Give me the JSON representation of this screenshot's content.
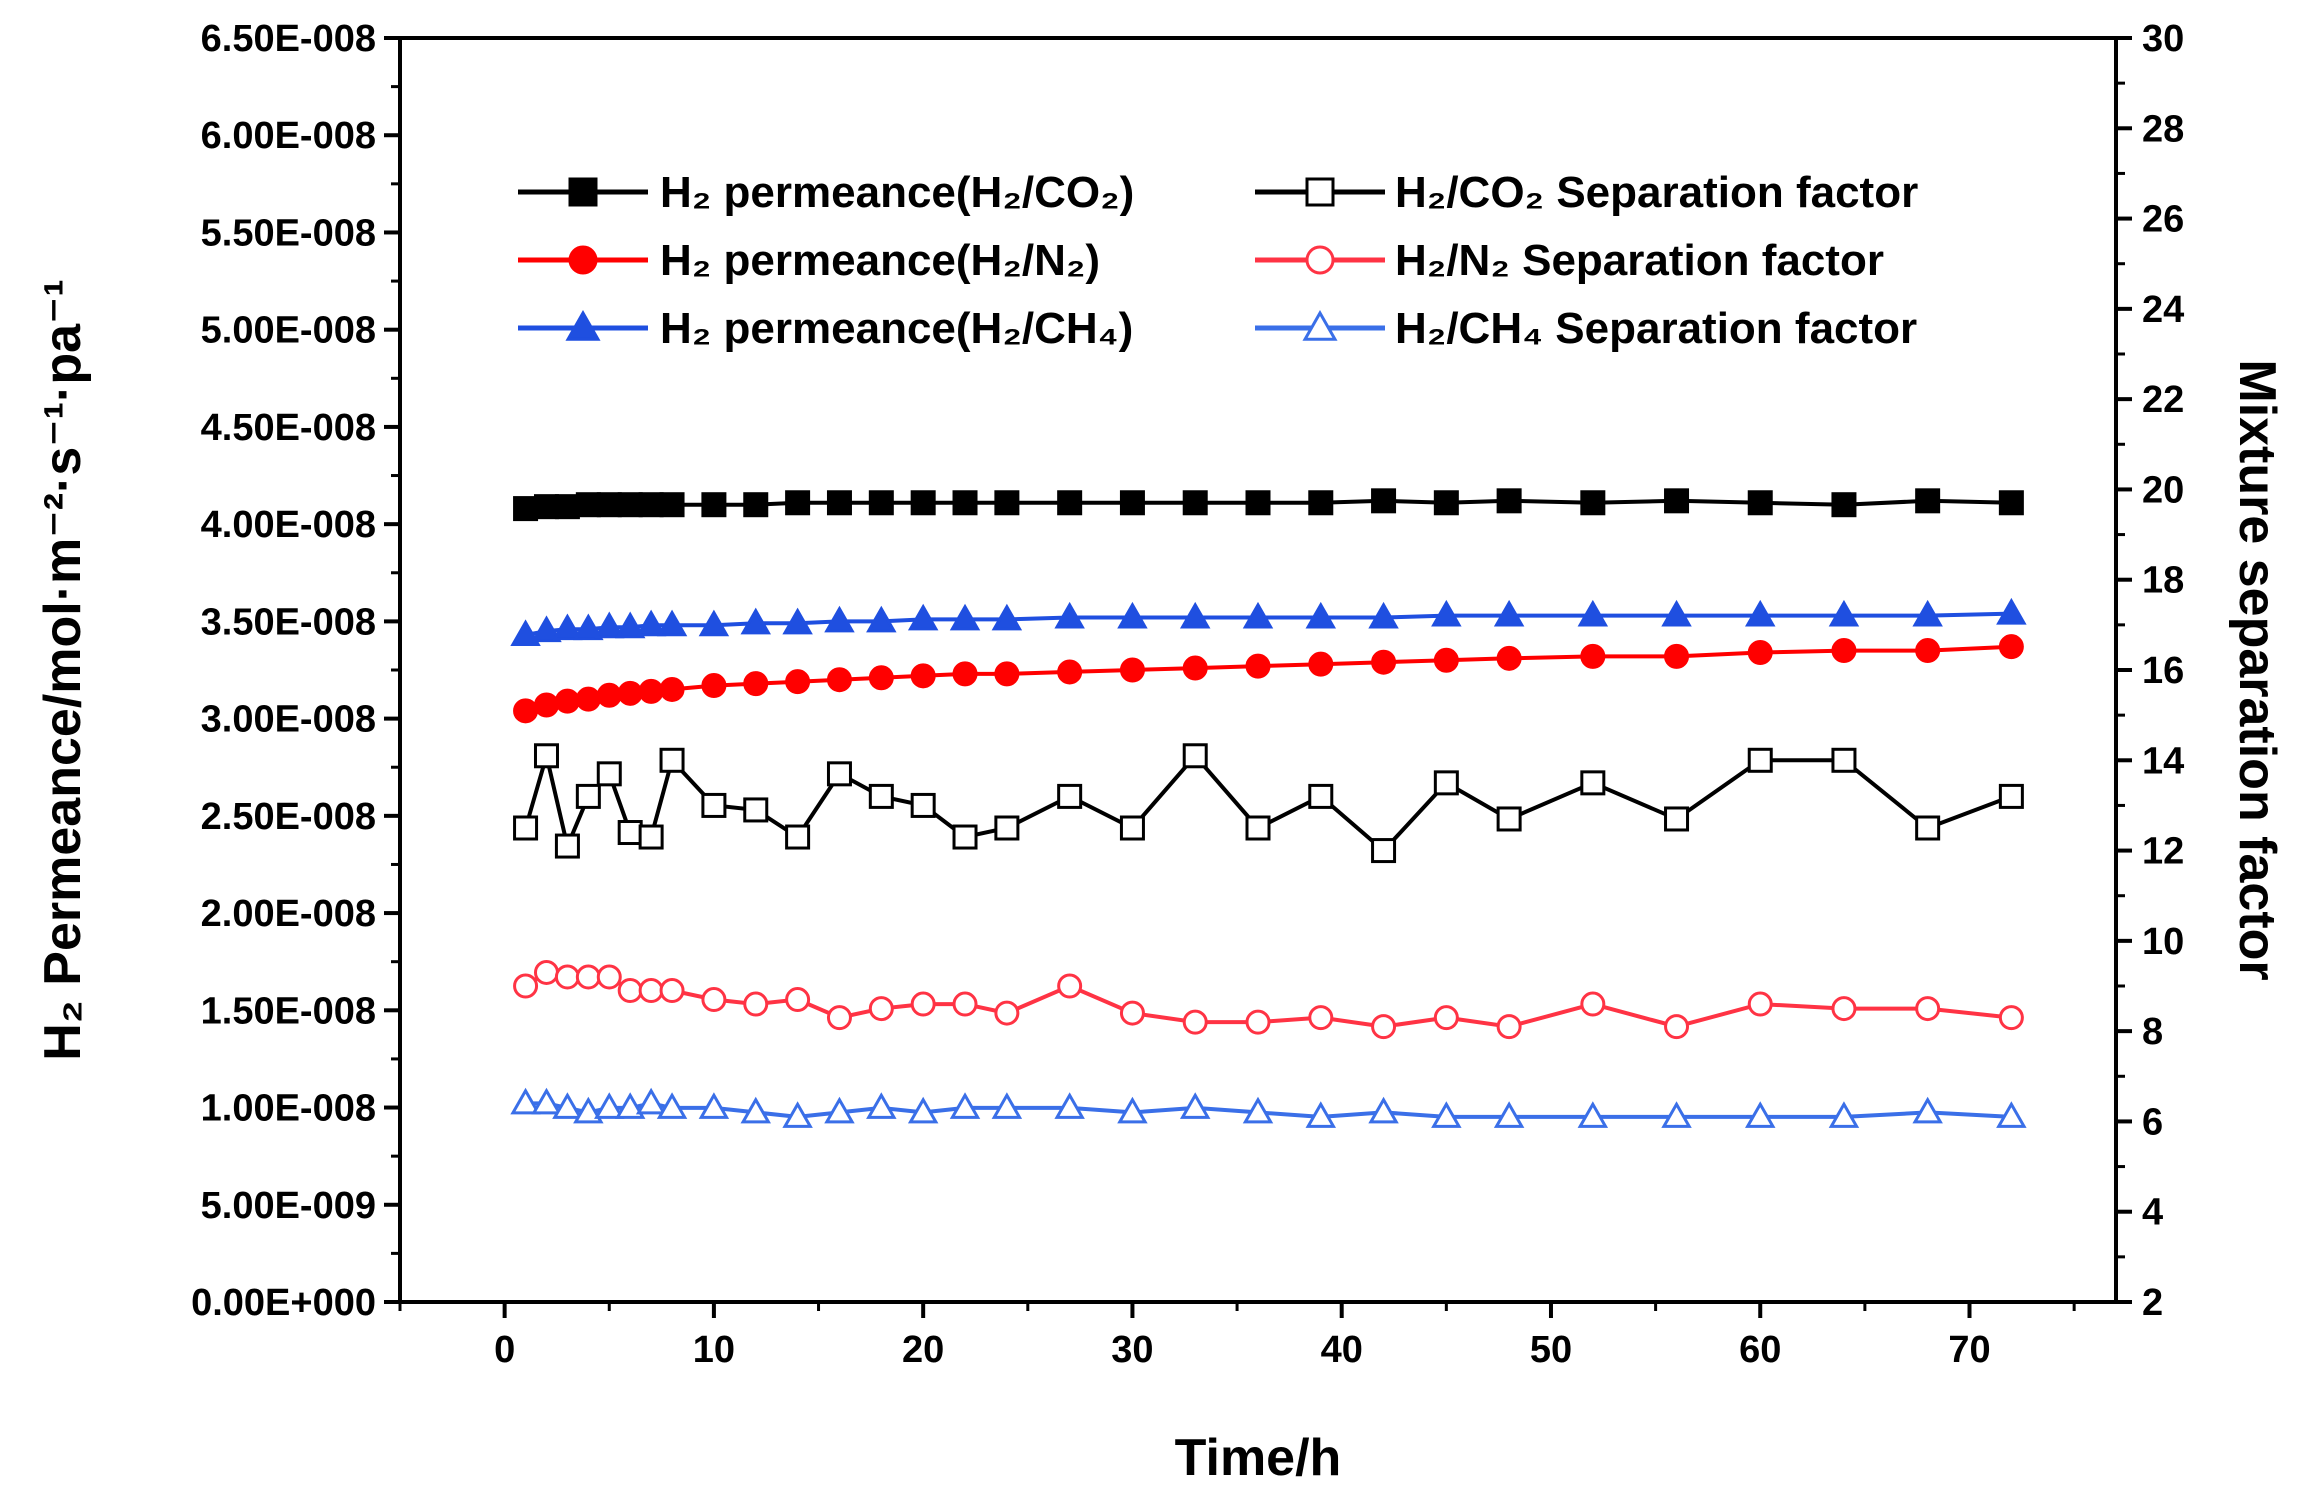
{
  "chart_data": {
    "type": "line",
    "xlabel": "Time/h",
    "ylabel_left": "H₂ Permeance/mol·m⁻²·s⁻¹·pa⁻¹",
    "ylabel_right": "Mixture separation factor",
    "xlim": [
      -5,
      77
    ],
    "ylim_left": [
      0,
      6.5e-08
    ],
    "ylim_right": [
      2,
      30
    ],
    "x_ticks": [
      "0",
      "10",
      "20",
      "30",
      "40",
      "50",
      "60",
      "70"
    ],
    "x_tick_values": [
      0,
      10,
      20,
      30,
      40,
      50,
      60,
      70
    ],
    "left_ticks": [
      "0.00E+000",
      "5.00E-009",
      "1.00E-008",
      "1.50E-008",
      "2.00E-008",
      "2.50E-008",
      "3.00E-008",
      "3.50E-008",
      "4.00E-008",
      "4.50E-008",
      "5.00E-008",
      "5.50E-008",
      "6.00E-008",
      "6.50E-008"
    ],
    "left_tick_values": [
      0,
      5e-09,
      1e-08,
      1.5e-08,
      2e-08,
      2.5e-08,
      3e-08,
      3.5e-08,
      4e-08,
      4.5e-08,
      5e-08,
      5.5e-08,
      6e-08,
      6.5e-08
    ],
    "right_ticks": [
      "2",
      "4",
      "6",
      "8",
      "10",
      "12",
      "14",
      "16",
      "18",
      "20",
      "22",
      "24",
      "26",
      "28",
      "30"
    ],
    "right_tick_values": [
      2,
      4,
      6,
      8,
      10,
      12,
      14,
      16,
      18,
      20,
      22,
      24,
      26,
      28,
      30
    ],
    "series": [
      {
        "name": "H₂ permeance(H₂/CO₂)",
        "axis": "left",
        "color": "#000000",
        "marker": "square",
        "filled": true,
        "x": [
          1,
          2,
          3,
          4,
          5,
          6,
          7,
          8,
          10,
          12,
          14,
          16,
          18,
          20,
          22,
          24,
          27,
          30,
          33,
          36,
          39,
          42,
          45,
          48,
          52,
          56,
          60,
          64,
          68,
          72
        ],
        "values": [
          4.08e-08,
          4.09e-08,
          4.09e-08,
          4.1e-08,
          4.1e-08,
          4.1e-08,
          4.1e-08,
          4.1e-08,
          4.1e-08,
          4.1e-08,
          4.11e-08,
          4.11e-08,
          4.11e-08,
          4.11e-08,
          4.11e-08,
          4.11e-08,
          4.11e-08,
          4.11e-08,
          4.11e-08,
          4.11e-08,
          4.11e-08,
          4.12e-08,
          4.11e-08,
          4.12e-08,
          4.11e-08,
          4.12e-08,
          4.11e-08,
          4.1e-08,
          4.12e-08,
          4.11e-08
        ]
      },
      {
        "name": "H₂ permeance(H₂/N₂)",
        "axis": "left",
        "color": "#ff0000",
        "marker": "circle",
        "filled": true,
        "x": [
          1,
          2,
          3,
          4,
          5,
          6,
          7,
          8,
          10,
          12,
          14,
          16,
          18,
          20,
          22,
          24,
          27,
          30,
          33,
          36,
          39,
          42,
          45,
          48,
          52,
          56,
          60,
          64,
          68,
          72
        ],
        "values": [
          3.04e-08,
          3.07e-08,
          3.09e-08,
          3.1e-08,
          3.12e-08,
          3.13e-08,
          3.14e-08,
          3.15e-08,
          3.17e-08,
          3.18e-08,
          3.19e-08,
          3.2e-08,
          3.21e-08,
          3.22e-08,
          3.23e-08,
          3.23e-08,
          3.24e-08,
          3.25e-08,
          3.26e-08,
          3.27e-08,
          3.28e-08,
          3.29e-08,
          3.3e-08,
          3.31e-08,
          3.32e-08,
          3.32e-08,
          3.34e-08,
          3.35e-08,
          3.35e-08,
          3.37e-08
        ]
      },
      {
        "name": "H₂ permeance(H₂/CH₄)",
        "axis": "left",
        "color": "#1f4fe0",
        "marker": "triangle",
        "filled": true,
        "x": [
          1,
          2,
          3,
          4,
          5,
          6,
          7,
          8,
          10,
          12,
          14,
          16,
          18,
          20,
          22,
          24,
          27,
          30,
          33,
          36,
          39,
          42,
          45,
          48,
          52,
          56,
          60,
          64,
          68,
          72
        ],
        "values": [
          3.43e-08,
          3.45e-08,
          3.46e-08,
          3.46e-08,
          3.47e-08,
          3.47e-08,
          3.48e-08,
          3.48e-08,
          3.48e-08,
          3.49e-08,
          3.49e-08,
          3.5e-08,
          3.5e-08,
          3.51e-08,
          3.51e-08,
          3.51e-08,
          3.52e-08,
          3.52e-08,
          3.52e-08,
          3.52e-08,
          3.52e-08,
          3.52e-08,
          3.53e-08,
          3.53e-08,
          3.53e-08,
          3.53e-08,
          3.53e-08,
          3.53e-08,
          3.53e-08,
          3.54e-08
        ]
      },
      {
        "name": "H₂/CO₂ Separation factor",
        "axis": "right",
        "color": "#000000",
        "marker": "square",
        "filled": false,
        "x": [
          1,
          2,
          3,
          4,
          5,
          6,
          7,
          8,
          10,
          12,
          14,
          16,
          18,
          20,
          22,
          24,
          27,
          30,
          33,
          36,
          39,
          42,
          45,
          48,
          52,
          56,
          60,
          64,
          68,
          72
        ],
        "values": [
          12.5,
          14.1,
          12.1,
          13.2,
          13.7,
          12.4,
          12.3,
          14.0,
          13.0,
          12.9,
          12.3,
          13.7,
          13.2,
          13.0,
          12.3,
          12.5,
          13.2,
          12.5,
          14.1,
          12.5,
          13.2,
          12.0,
          13.5,
          12.7,
          13.5,
          12.7,
          14.0,
          14.0,
          12.5,
          13.2
        ]
      },
      {
        "name": "H₂/N₂ Separation factor",
        "axis": "right",
        "color": "#ff3344",
        "marker": "circle",
        "filled": false,
        "x": [
          1,
          2,
          3,
          4,
          5,
          6,
          7,
          8,
          10,
          12,
          14,
          16,
          18,
          20,
          22,
          24,
          27,
          30,
          33,
          36,
          39,
          42,
          45,
          48,
          52,
          56,
          60,
          64,
          68,
          72
        ],
        "values": [
          9.0,
          9.3,
          9.2,
          9.2,
          9.2,
          8.9,
          8.9,
          8.9,
          8.7,
          8.6,
          8.7,
          8.3,
          8.5,
          8.6,
          8.6,
          8.4,
          9.0,
          8.4,
          8.2,
          8.2,
          8.3,
          8.1,
          8.3,
          8.1,
          8.6,
          8.1,
          8.6,
          8.5,
          8.5,
          8.3
        ]
      },
      {
        "name": "H₂/CH₄ Separation factor",
        "axis": "right",
        "color": "#3a6fe8",
        "marker": "triangle",
        "filled": false,
        "x": [
          1,
          2,
          3,
          4,
          5,
          6,
          7,
          8,
          10,
          12,
          14,
          16,
          18,
          20,
          22,
          24,
          27,
          30,
          33,
          36,
          39,
          42,
          45,
          48,
          52,
          56,
          60,
          64,
          68,
          72
        ],
        "values": [
          6.4,
          6.4,
          6.3,
          6.2,
          6.3,
          6.3,
          6.4,
          6.3,
          6.3,
          6.2,
          6.1,
          6.2,
          6.3,
          6.2,
          6.3,
          6.3,
          6.3,
          6.2,
          6.3,
          6.2,
          6.1,
          6.2,
          6.1,
          6.1,
          6.1,
          6.1,
          6.1,
          6.1,
          6.2,
          6.1
        ]
      }
    ]
  }
}
